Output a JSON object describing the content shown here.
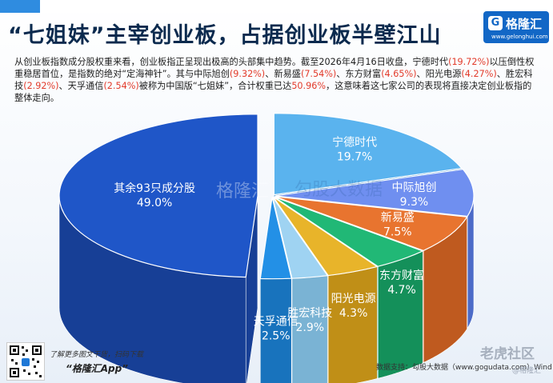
{
  "header": {
    "title": "“七姐妹”主宰创业板，占据创业板半壁江山",
    "brand_name": "格隆汇",
    "brand_url": "www.gelonghui.com"
  },
  "description": {
    "segments": [
      {
        "text": "从创业板指数成分股权重来看，创业板指正呈现出极高的头部集中趋势。截至2026年4月16日收盘，宁德时代",
        "hl": false
      },
      {
        "text": "(19.72%)",
        "hl": true
      },
      {
        "text": "以压倒性权重稳居首位，是指数的绝对“定海神针”。其与中际旭创",
        "hl": false
      },
      {
        "text": "(9.32%)",
        "hl": true
      },
      {
        "text": "、新易盛",
        "hl": false
      },
      {
        "text": "(7.54%)",
        "hl": true
      },
      {
        "text": "、东方财富",
        "hl": false
      },
      {
        "text": "(4.65%)",
        "hl": true
      },
      {
        "text": "、阳光电源",
        "hl": false
      },
      {
        "text": "(4.27%)",
        "hl": true
      },
      {
        "text": "、胜宏科技",
        "hl": false
      },
      {
        "text": "(2.92%)",
        "hl": true
      },
      {
        "text": "、天孚通信",
        "hl": false
      },
      {
        "text": "(2.54%)",
        "hl": true
      },
      {
        "text": "被称为中国版“七姐妹”，合计权重已达",
        "hl": false
      },
      {
        "text": "50.96%",
        "hl": true
      },
      {
        "text": "，这意味着这七家公司的表现将直接决定创业板指的整体走向。",
        "hl": false
      }
    ]
  },
  "chart_data": {
    "type": "pie",
    "style": "3d-exploded",
    "categories": [
      "宁德时代",
      "中际旭创",
      "新易盛",
      "东方财富",
      "阳光电源",
      "胜宏科技",
      "天孚通信",
      "其余93只成分股"
    ],
    "values": [
      19.7,
      9.3,
      7.5,
      4.7,
      4.3,
      2.9,
      2.5,
      49.0
    ],
    "value_labels": [
      "19.7%",
      "9.3%",
      "7.5%",
      "4.7%",
      "4.3%",
      "2.9%",
      "2.5%",
      "49.0%"
    ],
    "colors": [
      "#5ab3ee",
      "#6f8ff0",
      "#e8742f",
      "#21b876",
      "#e8b42a",
      "#9fd3f2",
      "#2390e6",
      "#1f56c8"
    ],
    "side_colors": [
      "#3f91cc",
      "#4c6bc8",
      "#bf5a1f",
      "#14905a",
      "#c08f17",
      "#7ab3d4",
      "#1873bd",
      "#173f96"
    ],
    "label_color": "#ffffff",
    "legend": "none",
    "title": ""
  },
  "footer": {
    "line1": "了解更多图文干货，扫码下载",
    "line2": "“格隆汇App”",
    "source": "数据支持：勾股大数据（www.gogudata.com）Wind",
    "watermark_site": "老虎社区",
    "watermark_small": "@格隆汇",
    "chart_watermark_1": "格隆汇",
    "chart_watermark_2": "勾股大数据"
  }
}
